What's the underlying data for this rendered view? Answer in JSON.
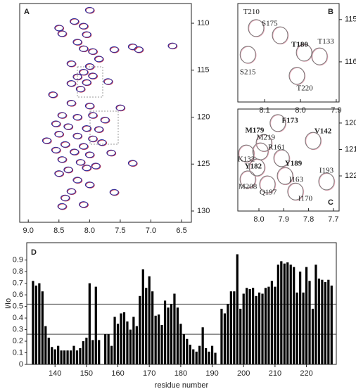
{
  "chart_data": [
    {
      "type": "spectrum",
      "panel": "A",
      "xlim": [
        9.14,
        6.34
      ],
      "ylim": [
        107.9,
        131.2
      ],
      "xticks": [
        {
          "value": 9,
          "label": "9.0"
        },
        8.5,
        {
          "value": 8,
          "label": "8.0"
        },
        7.5,
        {
          "value": 7,
          "label": "7.0"
        },
        6.5
      ],
      "yticks": [
        110,
        115,
        120,
        125,
        130
      ],
      "colors": [
        "#2a2a9a",
        "#c0304a"
      ],
      "peaks": {
        "x": [
          8.0,
          8.25,
          8.1,
          8.05,
          8.5,
          8.45,
          8.2,
          8.1,
          7.95,
          7.6,
          7.3,
          6.65,
          7.2,
          7.85,
          8.0,
          8.3,
          8.1,
          8.2,
          7.95,
          8.05,
          8.3,
          8.15,
          7.7,
          8.6,
          8.3,
          8.0,
          7.5,
          8.45,
          8.2,
          7.95,
          7.75,
          8.55,
          8.35,
          8.05,
          7.85,
          8.5,
          8.2,
          7.95,
          8.7,
          8.4,
          8.1,
          7.8,
          8.55,
          8.25,
          8.0,
          7.65,
          8.45,
          8.15,
          8.35,
          8.05,
          7.9,
          7.3,
          8.5,
          8.2,
          8.0,
          8.3,
          7.6,
          8.1,
          8.4,
          8.45
        ],
        "y": [
          108.6,
          109.8,
          110.3,
          111.2,
          110.5,
          111.1,
          112.0,
          112.7,
          113.0,
          112.8,
          112.5,
          112.4,
          112.8,
          113.8,
          114.6,
          114.3,
          115.2,
          115.7,
          115.6,
          116.3,
          116.4,
          117.0,
          116.2,
          117.6,
          118.5,
          118.8,
          119.0,
          119.8,
          120.0,
          119.8,
          120.3,
          120.7,
          121.0,
          121.2,
          121.3,
          121.8,
          122.0,
          122.3,
          122.5,
          122.9,
          123.1,
          122.7,
          123.5,
          123.7,
          124.0,
          123.8,
          124.5,
          124.8,
          125.6,
          125.4,
          125.2,
          124.9,
          126.0,
          126.7,
          127.2,
          127.9,
          128.0,
          129.3,
          128.6,
          129.5
        ]
      }
    },
    {
      "type": "spectrum",
      "panel": "B",
      "xlim": [
        8.175,
        7.892
      ],
      "ylim": [
        114.62,
        116.95
      ],
      "xticks": [
        8.1,
        {
          "value": 8,
          "label": "8.0"
        },
        7.9
      ],
      "yticks": [
        115,
        116
      ],
      "colors": [
        "#777777",
        "#e8a8b8"
      ],
      "highlight_color": "#e02020",
      "peaks": {
        "x": [
          8.124,
          8.057,
          7.99,
          7.947,
          8.147,
          8.01
        ],
        "y": [
          115.2,
          115.37,
          115.78,
          115.87,
          115.83,
          116.33
        ]
      },
      "annotations": [
        {
          "text": "T210",
          "x": 8.137,
          "y": 114.83,
          "highlight": false
        },
        {
          "text": "S175",
          "x": 8.086,
          "y": 115.1,
          "highlight": false
        },
        {
          "text": "T180",
          "x": 8.002,
          "y": 115.6,
          "highlight": true
        },
        {
          "text": "T133",
          "x": 7.929,
          "y": 115.53,
          "highlight": false
        },
        {
          "text": "S215",
          "x": 8.147,
          "y": 116.25,
          "highlight": false
        },
        {
          "text": "T220",
          "x": 7.988,
          "y": 116.63,
          "highlight": false
        }
      ]
    },
    {
      "type": "spectrum",
      "panel": "C",
      "xlim": [
        8.085,
        7.677
      ],
      "ylim": [
        119.47,
        123.33
      ],
      "xticks": [
        {
          "value": 8,
          "label": "8.0"
        },
        7.9,
        7.8,
        7.7
      ],
      "yticks": [
        120,
        121,
        122
      ],
      "colors": [
        "#777777",
        "#e8a8b8"
      ],
      "highlight_color": "#e02020",
      "peaks": {
        "x": [
          7.924,
          7.98,
          7.782,
          7.994,
          8.051,
          7.909,
          7.728,
          8.045,
          7.966,
          7.895,
          7.853,
          8.008
        ],
        "y": [
          120.0,
          120.75,
          120.67,
          121.07,
          121.15,
          121.33,
          122.21,
          122.13,
          122.32,
          122.0,
          122.59,
          121.68
        ]
      },
      "annotations": [
        {
          "text": "F173",
          "x": 7.875,
          "y": 119.92,
          "highlight": true
        },
        {
          "text": "M179",
          "x": 8.017,
          "y": 120.29,
          "highlight": true
        },
        {
          "text": "M219",
          "x": 7.972,
          "y": 120.56,
          "highlight": false
        },
        {
          "text": "V142",
          "x": 7.742,
          "y": 120.32,
          "highlight": true
        },
        {
          "text": "R161",
          "x": 7.929,
          "y": 120.93,
          "highlight": false
        },
        {
          "text": "K132",
          "x": 8.051,
          "y": 121.39,
          "highlight": false
        },
        {
          "text": "Y182",
          "x": 8.023,
          "y": 121.65,
          "highlight": true
        },
        {
          "text": "Y189",
          "x": 7.861,
          "y": 121.55,
          "highlight": true
        },
        {
          "text": "I193",
          "x": 7.728,
          "y": 121.81,
          "highlight": false
        },
        {
          "text": "M208",
          "x": 8.045,
          "y": 122.43,
          "highlight": false
        },
        {
          "text": "Q197",
          "x": 7.963,
          "y": 122.64,
          "highlight": false
        },
        {
          "text": "I163",
          "x": 7.85,
          "y": 122.16,
          "highlight": false
        },
        {
          "text": "I170",
          "x": 7.813,
          "y": 122.88,
          "highlight": false
        }
      ]
    },
    {
      "type": "bar",
      "panel": "D",
      "ylabel": "I/Io",
      "xlabel": "residue number",
      "color": "#000000",
      "xlim": [
        131,
        229.5
      ],
      "ylim": [
        0,
        1.05
      ],
      "xticks": [
        140,
        150,
        160,
        170,
        180,
        190,
        200,
        210,
        220
      ],
      "yticks": [
        0,
        0.1,
        0.2,
        0.3,
        0.4,
        0.5,
        0.6,
        0.7,
        0.8,
        0.9
      ],
      "hlines": [
        0.52,
        0.26
      ],
      "x": [
        133,
        134,
        135,
        136,
        137,
        138,
        139,
        140,
        141,
        142,
        143,
        144,
        145,
        146,
        147,
        148,
        149,
        150,
        151,
        152,
        153,
        154,
        155,
        156,
        157,
        158,
        159,
        160,
        161,
        162,
        163,
        164,
        165,
        166,
        167,
        168,
        169,
        170,
        171,
        172,
        173,
        174,
        175,
        176,
        177,
        178,
        179,
        180,
        181,
        182,
        183,
        184,
        185,
        186,
        187,
        188,
        189,
        190,
        191,
        192,
        193,
        194,
        195,
        196,
        197,
        198,
        199,
        200,
        201,
        202,
        203,
        204,
        205,
        206,
        207,
        208,
        209,
        210,
        211,
        212,
        213,
        214,
        215,
        216,
        217,
        218,
        219,
        220,
        221,
        222,
        223,
        224,
        225,
        226,
        227,
        228
      ],
      "values": [
        0.72,
        0.68,
        0.7,
        0.63,
        0.33,
        0.23,
        0.15,
        0.13,
        0.16,
        0.12,
        0.12,
        0.12,
        0.12,
        0.16,
        0.12,
        0.14,
        0.2,
        0.23,
        0.7,
        0.21,
        0.67,
        0.21,
        null,
        0.26,
        0.26,
        0.16,
        0.41,
        0.35,
        0.44,
        0.45,
        0.37,
        0.3,
        0.41,
        0.33,
        0.59,
        0.82,
        0.66,
        0.76,
        0.63,
        0.42,
        0.43,
        0.34,
        0.55,
        0.49,
        0.52,
        0.61,
        0.49,
        0.35,
        0.26,
        0.22,
        0.17,
        0.13,
        0.11,
        0.16,
        0.32,
        0.14,
        0.11,
        0.16,
        0.1,
        null,
        0.48,
        0.44,
        0.52,
        0.63,
        0.63,
        0.95,
        0.48,
        0.61,
        0.66,
        0.65,
        0.66,
        0.59,
        0.62,
        0.61,
        0.66,
        0.67,
        0.72,
        0.67,
        0.86,
        0.89,
        0.87,
        0.88,
        0.86,
        0.84,
        0.62,
        0.8,
        0.62,
        0.84,
        0.72,
        0.48,
        0.86,
        0.74,
        0.73,
        0.71,
        0.73,
        0.68
      ]
    }
  ]
}
